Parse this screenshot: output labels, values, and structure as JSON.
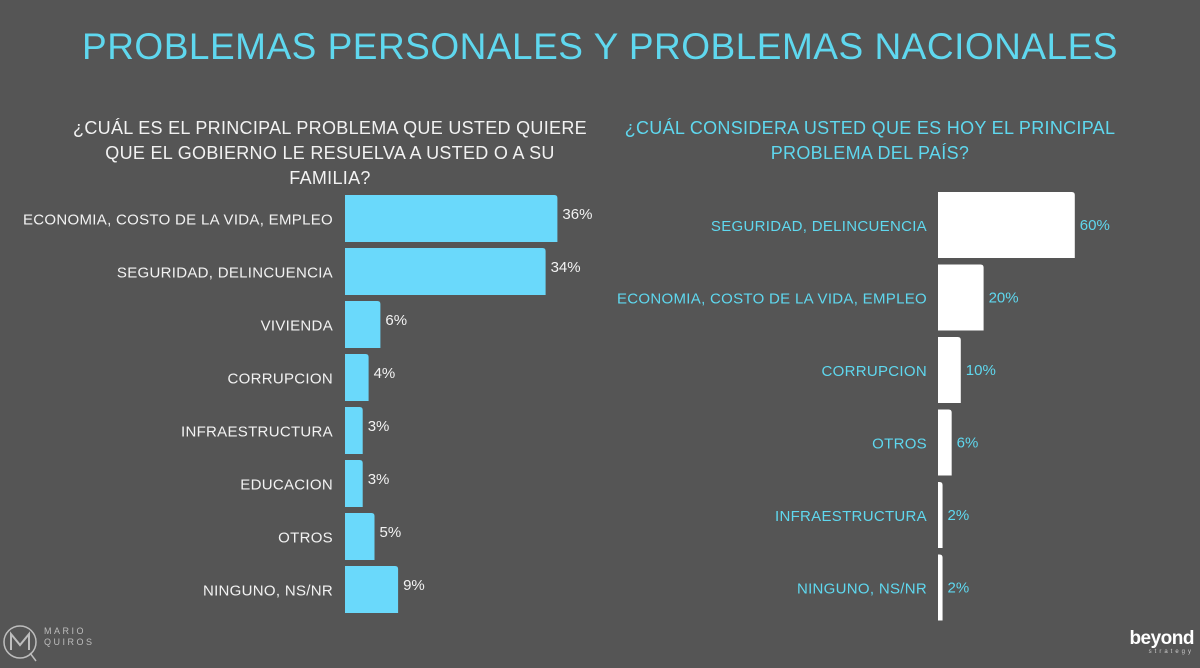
{
  "main_title": "PROBLEMAS PERSONALES Y PROBLEMAS NACIONALES",
  "chart_data": [
    {
      "type": "bar",
      "orientation": "horizontal",
      "title": "¿CUÁL ES EL PRINCIPAL PROBLEMA QUE USTED QUIERE QUE EL GOBIERNO LE RESUELVA A USTED O A SU FAMILIA?",
      "title_lines": [
        "¿CUÁL ES EL PRINCIPAL PROBLEMA QUE USTED QUIERE",
        "QUE EL GOBIERNO LE RESUELVA A USTED O A SU",
        "FAMILIA?"
      ],
      "categories": [
        "ECONOMIA, COSTO DE LA VIDA, EMPLEO",
        "SEGURIDAD, DELINCUENCIA",
        "VIVIENDA",
        "CORRUPCION",
        "INFRAESTRUCTURA",
        "EDUCACION",
        "OTROS",
        "NINGUNO, NS/NR"
      ],
      "values": [
        36,
        34,
        6,
        4,
        3,
        3,
        5,
        9
      ],
      "value_labels": [
        "36%",
        "34%",
        "6%",
        "4%",
        "3%",
        "3%",
        "5%",
        "9%"
      ],
      "unit": "%",
      "bar_color": "#6ad9fb",
      "label_color": "#f2f2f2",
      "value_color": "#f2f2f2",
      "xlim": [
        0,
        60
      ]
    },
    {
      "type": "bar",
      "orientation": "horizontal",
      "title": "¿CUÁL CONSIDERA USTED QUE ES HOY EL PRINCIPAL PROBLEMA DEL PAÍS?",
      "title_lines": [
        "¿CUÁL CONSIDERA USTED QUE ES HOY EL PRINCIPAL",
        "PROBLEMA DEL PAÍS?"
      ],
      "categories": [
        "SEGURIDAD, DELINCUENCIA",
        "ECONOMIA, COSTO DE LA VIDA, EMPLEO",
        "CORRUPCION",
        "OTROS",
        "INFRAESTRUCTURA",
        "NINGUNO, NS/NR"
      ],
      "values": [
        60,
        20,
        10,
        6,
        2,
        2
      ],
      "value_labels": [
        "60%",
        "20%",
        "10%",
        "6%",
        "2%",
        "2%"
      ],
      "unit": "%",
      "bar_color": "#ffffff",
      "label_color": "#5fd8ef",
      "value_color": "#5fd8ef",
      "xlim": [
        0,
        60
      ]
    }
  ],
  "logos": {
    "left_line1": "MARIO",
    "left_line2": "QUIROS",
    "right_word": "beyond",
    "right_sub": "strategy"
  },
  "colors": {
    "background": "#555555",
    "accent": "#5fd8ef"
  }
}
